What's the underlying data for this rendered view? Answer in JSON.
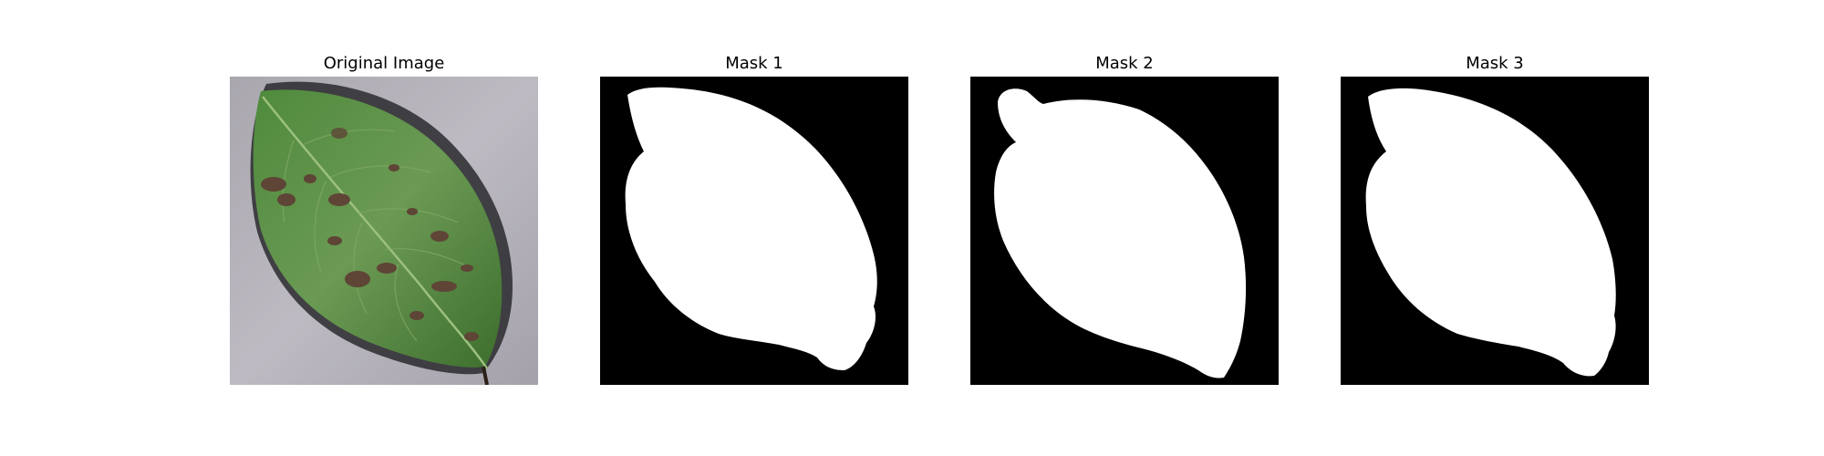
{
  "figure": {
    "panels": [
      {
        "title": "Original Image",
        "kind": "photo"
      },
      {
        "title": "Mask 1",
        "kind": "mask"
      },
      {
        "title": "Mask 2",
        "kind": "mask"
      },
      {
        "title": "Mask 3",
        "kind": "mask"
      }
    ]
  },
  "colors": {
    "background": "#ffffff",
    "mask_background": "#000000",
    "mask_foreground": "#ffffff",
    "leaf_green": "#5a8a44",
    "leaf_dark": "#3f6b30",
    "surface_gray": "#b3b0b8",
    "lesion_brown": "#5e4536"
  }
}
